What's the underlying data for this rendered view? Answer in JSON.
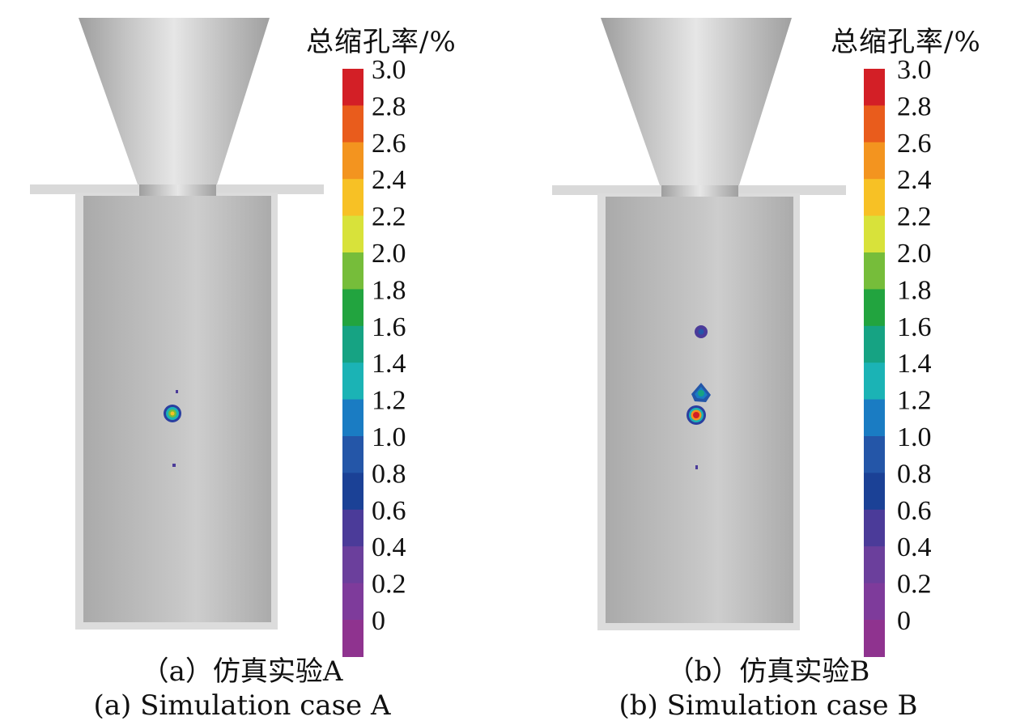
{
  "colorbar": {
    "title": "总缩孔率/%",
    "ticks": [
      "3.0",
      "2.8",
      "2.6",
      "2.4",
      "2.2",
      "2.0",
      "1.8",
      "1.6",
      "1.4",
      "1.2",
      "1.0",
      "0.8",
      "0.6",
      "0.4",
      "0.2",
      "0"
    ],
    "colors": [
      "#d31f26",
      "#e95c1c",
      "#f3941f",
      "#f7c125",
      "#d8e23a",
      "#76bd3a",
      "#22a43f",
      "#16a383",
      "#1bb3b5",
      "#1a7cc3",
      "#2456a8",
      "#1b4196",
      "#4b3b99",
      "#6b3f9c",
      "#7e3b9b",
      "#8f338f"
    ]
  },
  "panels": [
    {
      "caption_cn": "（a）仿真实验A",
      "caption_en": "(a) Simulation case A"
    },
    {
      "caption_cn": "（b）仿真实验B",
      "caption_en": "(b) Simulation case B"
    }
  ]
}
